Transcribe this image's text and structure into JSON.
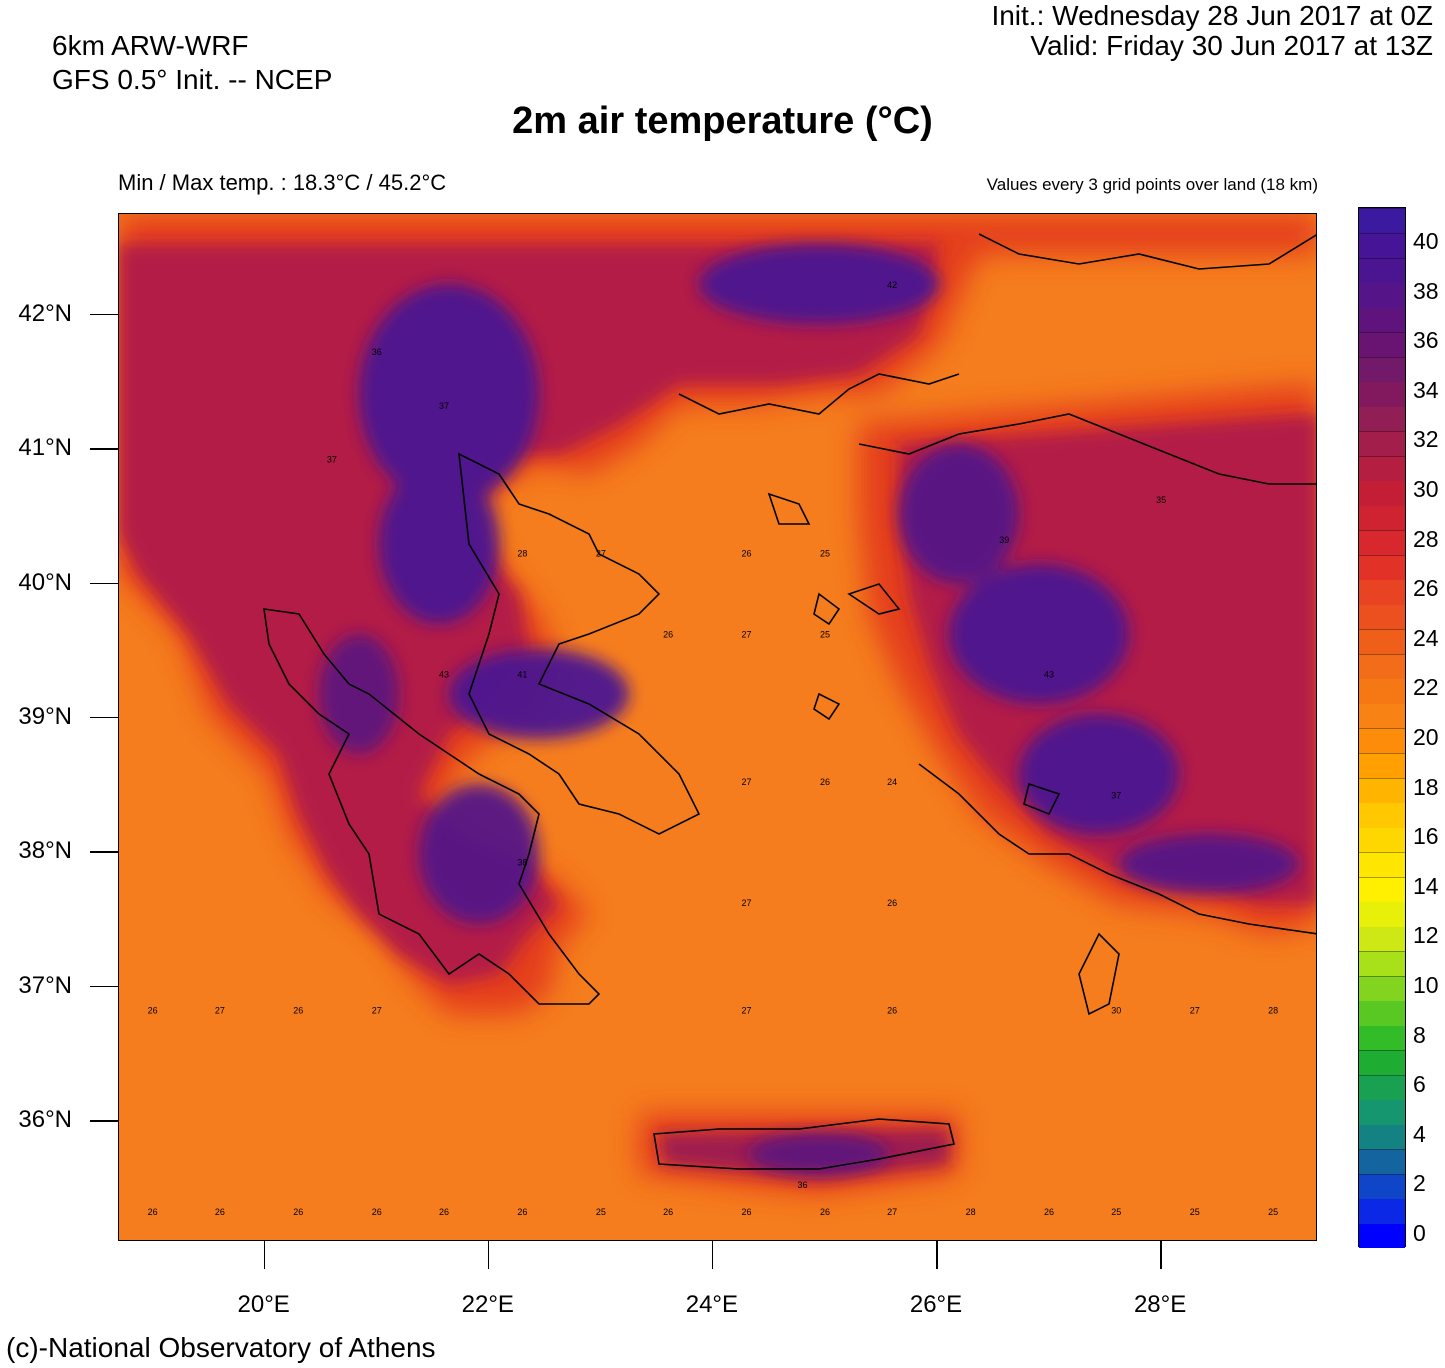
{
  "header": {
    "model_line1": "6km ARW-WRF",
    "model_line2": "GFS 0.5° Init. -- NCEP",
    "init": "Init.:  Wednesday 28 Jun 2017 at 0Z",
    "valid": "Valid: Friday 30 Jun 2017 at 13Z",
    "title": "2m air temperature (°C)",
    "minmax": "Min / Max temp. : 18.3°C / 45.2°C",
    "values_note": "Values every 3 grid points over land (18 km)"
  },
  "footer": {
    "credit": "(c)-National Observatory of Athens"
  },
  "map": {
    "lon_range": [
      18.7,
      29.4
    ],
    "lat_range": [
      35.1,
      42.75
    ],
    "lat_ticks": [
      {
        "value": 42,
        "label": "42°N"
      },
      {
        "value": 41,
        "label": "41°N"
      },
      {
        "value": 40,
        "label": "40°N"
      },
      {
        "value": 39,
        "label": "39°N"
      },
      {
        "value": 38,
        "label": "38°N"
      },
      {
        "value": 37,
        "label": "37°N"
      },
      {
        "value": 36,
        "label": "36°N"
      }
    ],
    "lon_ticks": [
      {
        "value": 20,
        "label": "20°E"
      },
      {
        "value": 22,
        "label": "22°E"
      },
      {
        "value": 24,
        "label": "24°E"
      },
      {
        "value": 26,
        "label": "26°E"
      },
      {
        "value": 28,
        "label": "28°E"
      }
    ],
    "sea_temperature": 26,
    "sea_color": "#f57d1e",
    "point_values": [
      {
        "lon": 19.0,
        "lat": 35.3,
        "value": 26
      },
      {
        "lon": 19.6,
        "lat": 35.3,
        "value": 26
      },
      {
        "lon": 20.3,
        "lat": 35.3,
        "value": 26
      },
      {
        "lon": 21.0,
        "lat": 35.3,
        "value": 26
      },
      {
        "lon": 21.6,
        "lat": 35.3,
        "value": 26
      },
      {
        "lon": 22.3,
        "lat": 35.3,
        "value": 26
      },
      {
        "lon": 23.0,
        "lat": 35.3,
        "value": 25
      },
      {
        "lon": 23.6,
        "lat": 35.3,
        "value": 26
      },
      {
        "lon": 24.3,
        "lat": 35.3,
        "value": 26
      },
      {
        "lon": 25.0,
        "lat": 35.3,
        "value": 26
      },
      {
        "lon": 25.6,
        "lat": 35.3,
        "value": 27
      },
      {
        "lon": 26.3,
        "lat": 35.3,
        "value": 28
      },
      {
        "lon": 27.0,
        "lat": 35.3,
        "value": 26
      },
      {
        "lon": 27.6,
        "lat": 35.3,
        "value": 25
      },
      {
        "lon": 28.3,
        "lat": 35.3,
        "value": 25
      },
      {
        "lon": 29.0,
        "lat": 35.3,
        "value": 25
      },
      {
        "lon": 19.0,
        "lat": 36.8,
        "value": 26
      },
      {
        "lon": 19.6,
        "lat": 36.8,
        "value": 27
      },
      {
        "lon": 20.3,
        "lat": 36.8,
        "value": 26
      },
      {
        "lon": 21.0,
        "lat": 36.8,
        "value": 27
      },
      {
        "lon": 24.3,
        "lat": 36.8,
        "value": 27
      },
      {
        "lon": 25.6,
        "lat": 36.8,
        "value": 26
      },
      {
        "lon": 27.6,
        "lat": 36.8,
        "value": 30
      },
      {
        "lon": 28.3,
        "lat": 36.8,
        "value": 27
      },
      {
        "lon": 29.0,
        "lat": 36.8,
        "value": 28
      },
      {
        "lon": 24.3,
        "lat": 37.6,
        "value": 27
      },
      {
        "lon": 25.6,
        "lat": 37.6,
        "value": 26
      },
      {
        "lon": 24.3,
        "lat": 38.5,
        "value": 27
      },
      {
        "lon": 25.0,
        "lat": 38.5,
        "value": 26
      },
      {
        "lon": 25.6,
        "lat": 38.5,
        "value": 24
      },
      {
        "lon": 23.6,
        "lat": 39.6,
        "value": 26
      },
      {
        "lon": 24.3,
        "lat": 39.6,
        "value": 27
      },
      {
        "lon": 25.0,
        "lat": 39.6,
        "value": 25
      },
      {
        "lon": 22.3,
        "lat": 40.2,
        "value": 28
      },
      {
        "lon": 23.0,
        "lat": 40.2,
        "value": 27
      },
      {
        "lon": 24.3,
        "lat": 40.2,
        "value": 26
      },
      {
        "lon": 25.0,
        "lat": 40.2,
        "value": 25
      },
      {
        "lon": 21.6,
        "lat": 41.3,
        "value": 37
      },
      {
        "lon": 21.0,
        "lat": 41.7,
        "value": 36
      },
      {
        "lon": 21.6,
        "lat": 39.3,
        "value": 43
      },
      {
        "lon": 22.3,
        "lat": 39.3,
        "value": 41
      },
      {
        "lon": 27.0,
        "lat": 39.3,
        "value": 43
      },
      {
        "lon": 27.6,
        "lat": 38.4,
        "value": 37
      },
      {
        "lon": 22.3,
        "lat": 37.9,
        "value": 38
      },
      {
        "lon": 24.8,
        "lat": 35.5,
        "value": 36
      },
      {
        "lon": 25.6,
        "lat": 42.2,
        "value": 42
      },
      {
        "lon": 28.0,
        "lat": 40.6,
        "value": 35
      },
      {
        "lon": 26.6,
        "lat": 40.3,
        "value": 39
      },
      {
        "lon": 20.6,
        "lat": 40.9,
        "value": 37
      }
    ]
  },
  "colorbar": {
    "labels": [
      "40",
      "38",
      "36",
      "34",
      "32",
      "30",
      "28",
      "26",
      "24",
      "22",
      "20",
      "18",
      "16",
      "14",
      "12",
      "10",
      "8",
      "6",
      "4",
      "2",
      "0"
    ],
    "colors": [
      "#0000ff",
      "#0a28e6",
      "#0f46c8",
      "#1464a0",
      "#148282",
      "#16966e",
      "#19a050",
      "#1ead32",
      "#32bc28",
      "#5ac823",
      "#82d41e",
      "#a8e01a",
      "#cde814",
      "#e8f00a",
      "#fff000",
      "#ffe600",
      "#ffd700",
      "#ffc800",
      "#ffb400",
      "#ffa000",
      "#fc8c0a",
      "#f98214",
      "#f57814",
      "#f26c19",
      "#ef5f19",
      "#ec501e",
      "#e84423",
      "#e23228",
      "#d9282d",
      "#cf2332",
      "#c41e37",
      "#b41e41",
      "#a31e4b",
      "#911e55",
      "#82195f",
      "#731969",
      "#691473",
      "#5f147d",
      "#551487",
      "#4b1491",
      "#461496",
      "#3c1aa0"
    ]
  }
}
